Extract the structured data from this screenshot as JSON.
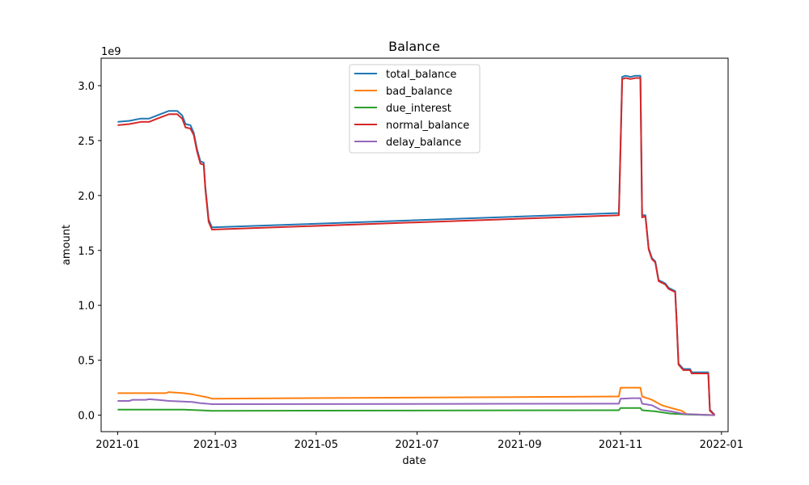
{
  "chart_data": {
    "type": "line",
    "title": "Balance",
    "xlabel": "date",
    "ylabel": "amount",
    "y_scale_label": "1e9",
    "xlim": [
      "2020-12-22",
      "2022-01-05"
    ],
    "ylim": [
      -0.15,
      3.25
    ],
    "x_ticks": [
      "2021-01",
      "2021-03",
      "2021-05",
      "2021-07",
      "2021-09",
      "2021-11",
      "2022-01"
    ],
    "y_ticks": [
      0.0,
      0.5,
      1.0,
      1.5,
      2.0,
      2.5,
      3.0
    ],
    "y_tick_labels": [
      "0.0",
      "0.5",
      "1.0",
      "1.5",
      "2.0",
      "2.5",
      "3.0"
    ],
    "grid": false,
    "legend_position": "top-center",
    "series": [
      {
        "name": "total_balance",
        "color": "#1f77b4",
        "points": [
          [
            "2021-01-01",
            2.67
          ],
          [
            "2021-01-08",
            2.68
          ],
          [
            "2021-01-15",
            2.7
          ],
          [
            "2021-01-20",
            2.7
          ],
          [
            "2021-01-25",
            2.73
          ],
          [
            "2021-02-01",
            2.77
          ],
          [
            "2021-02-06",
            2.77
          ],
          [
            "2021-02-09",
            2.73
          ],
          [
            "2021-02-11",
            2.65
          ],
          [
            "2021-02-14",
            2.64
          ],
          [
            "2021-02-16",
            2.57
          ],
          [
            "2021-02-18",
            2.42
          ],
          [
            "2021-02-20",
            2.31
          ],
          [
            "2021-02-22",
            2.3
          ],
          [
            "2021-02-23",
            2.08
          ],
          [
            "2021-02-25",
            1.78
          ],
          [
            "2021-02-27",
            1.71
          ],
          [
            "2021-10-31",
            1.84
          ],
          [
            "2021-11-02",
            3.08
          ],
          [
            "2021-11-04",
            3.09
          ],
          [
            "2021-11-07",
            3.08
          ],
          [
            "2021-11-10",
            3.09
          ],
          [
            "2021-11-13",
            3.09
          ],
          [
            "2021-11-14",
            1.82
          ],
          [
            "2021-11-16",
            1.82
          ],
          [
            "2021-11-18",
            1.52
          ],
          [
            "2021-11-20",
            1.43
          ],
          [
            "2021-11-22",
            1.4
          ],
          [
            "2021-11-24",
            1.23
          ],
          [
            "2021-11-28",
            1.2
          ],
          [
            "2021-11-30",
            1.16
          ],
          [
            "2021-12-04",
            1.13
          ],
          [
            "2021-12-05",
            0.83
          ],
          [
            "2021-12-06",
            0.47
          ],
          [
            "2021-12-09",
            0.42
          ],
          [
            "2021-12-13",
            0.42
          ],
          [
            "2021-12-14",
            0.39
          ],
          [
            "2021-12-20",
            0.39
          ],
          [
            "2021-12-24",
            0.39
          ],
          [
            "2021-12-25",
            0.05
          ],
          [
            "2021-12-28",
            0.0
          ]
        ]
      },
      {
        "name": "bad_balance",
        "color": "#ff7f0e",
        "points": [
          [
            "2021-01-01",
            0.2
          ],
          [
            "2021-01-30",
            0.2
          ],
          [
            "2021-02-01",
            0.21
          ],
          [
            "2021-02-10",
            0.2
          ],
          [
            "2021-02-15",
            0.19
          ],
          [
            "2021-02-20",
            0.175
          ],
          [
            "2021-02-25",
            0.16
          ],
          [
            "2021-02-27",
            0.15
          ],
          [
            "2021-10-31",
            0.17
          ],
          [
            "2021-11-01",
            0.25
          ],
          [
            "2021-11-13",
            0.25
          ],
          [
            "2021-11-14",
            0.17
          ],
          [
            "2021-11-20",
            0.14
          ],
          [
            "2021-11-26",
            0.09
          ],
          [
            "2021-12-03",
            0.06
          ],
          [
            "2021-12-08",
            0.04
          ],
          [
            "2021-12-11",
            0.01
          ],
          [
            "2021-12-28",
            0.0
          ]
        ]
      },
      {
        "name": "due_interest",
        "color": "#2ca02c",
        "points": [
          [
            "2021-01-01",
            0.05
          ],
          [
            "2021-02-10",
            0.05
          ],
          [
            "2021-02-27",
            0.04
          ],
          [
            "2021-10-31",
            0.045
          ],
          [
            "2021-11-01",
            0.065
          ],
          [
            "2021-11-13",
            0.065
          ],
          [
            "2021-11-14",
            0.045
          ],
          [
            "2021-11-22",
            0.035
          ],
          [
            "2021-12-01",
            0.015
          ],
          [
            "2021-12-12",
            0.005
          ],
          [
            "2021-12-28",
            0.0
          ]
        ]
      },
      {
        "name": "normal_balance",
        "color": "#d62728",
        "points": [
          [
            "2021-01-01",
            2.64
          ],
          [
            "2021-01-08",
            2.65
          ],
          [
            "2021-01-15",
            2.67
          ],
          [
            "2021-01-20",
            2.67
          ],
          [
            "2021-01-25",
            2.7
          ],
          [
            "2021-02-01",
            2.74
          ],
          [
            "2021-02-06",
            2.74
          ],
          [
            "2021-02-09",
            2.7
          ],
          [
            "2021-02-11",
            2.62
          ],
          [
            "2021-02-14",
            2.61
          ],
          [
            "2021-02-16",
            2.55
          ],
          [
            "2021-02-18",
            2.4
          ],
          [
            "2021-02-20",
            2.29
          ],
          [
            "2021-02-22",
            2.28
          ],
          [
            "2021-02-23",
            2.06
          ],
          [
            "2021-02-25",
            1.76
          ],
          [
            "2021-02-27",
            1.69
          ],
          [
            "2021-10-31",
            1.82
          ],
          [
            "2021-11-02",
            3.06
          ],
          [
            "2021-11-04",
            3.07
          ],
          [
            "2021-11-07",
            3.06
          ],
          [
            "2021-11-10",
            3.07
          ],
          [
            "2021-11-13",
            3.07
          ],
          [
            "2021-11-14",
            1.8
          ],
          [
            "2021-11-16",
            1.81
          ],
          [
            "2021-11-18",
            1.51
          ],
          [
            "2021-11-20",
            1.42
          ],
          [
            "2021-11-22",
            1.39
          ],
          [
            "2021-11-24",
            1.22
          ],
          [
            "2021-11-28",
            1.19
          ],
          [
            "2021-11-30",
            1.15
          ],
          [
            "2021-12-04",
            1.12
          ],
          [
            "2021-12-05",
            0.82
          ],
          [
            "2021-12-06",
            0.46
          ],
          [
            "2021-12-09",
            0.41
          ],
          [
            "2021-12-13",
            0.41
          ],
          [
            "2021-12-14",
            0.38
          ],
          [
            "2021-12-20",
            0.38
          ],
          [
            "2021-12-24",
            0.38
          ],
          [
            "2021-12-25",
            0.04
          ],
          [
            "2021-12-28",
            0.0
          ]
        ]
      },
      {
        "name": "delay_balance",
        "color": "#9467bd",
        "points": [
          [
            "2021-01-01",
            0.13
          ],
          [
            "2021-01-08",
            0.13
          ],
          [
            "2021-01-10",
            0.14
          ],
          [
            "2021-01-18",
            0.14
          ],
          [
            "2021-01-20",
            0.145
          ],
          [
            "2021-01-25",
            0.14
          ],
          [
            "2021-02-01",
            0.13
          ],
          [
            "2021-02-15",
            0.12
          ],
          [
            "2021-02-20",
            0.11
          ],
          [
            "2021-02-27",
            0.1
          ],
          [
            "2021-10-31",
            0.105
          ],
          [
            "2021-11-01",
            0.15
          ],
          [
            "2021-11-08",
            0.155
          ],
          [
            "2021-11-13",
            0.155
          ],
          [
            "2021-11-14",
            0.105
          ],
          [
            "2021-11-20",
            0.09
          ],
          [
            "2021-11-25",
            0.05
          ],
          [
            "2021-12-03",
            0.03
          ],
          [
            "2021-12-10",
            0.01
          ],
          [
            "2021-12-28",
            0.0
          ]
        ]
      }
    ]
  }
}
